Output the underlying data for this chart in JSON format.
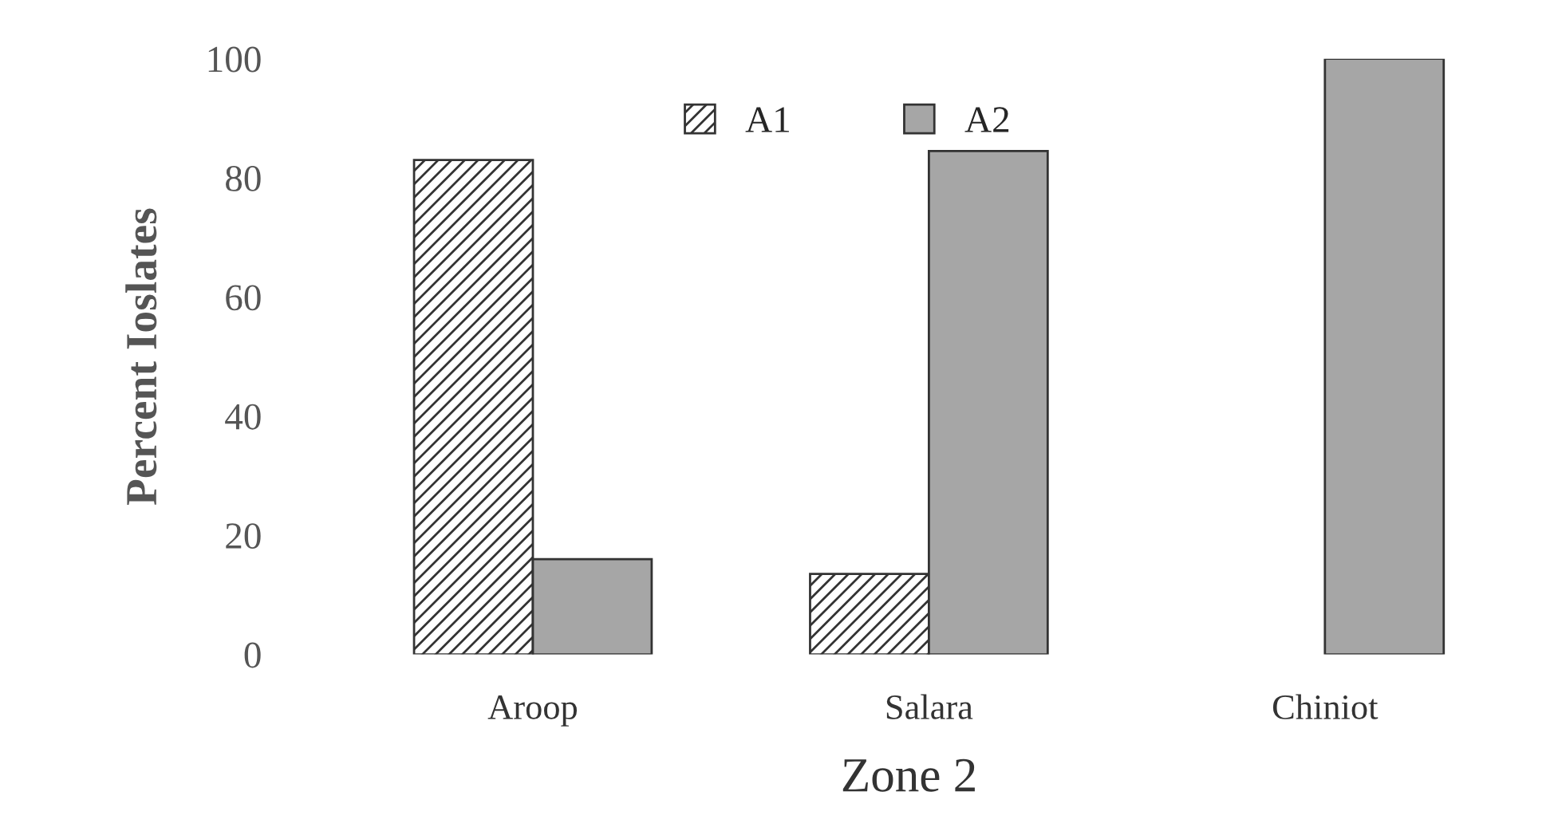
{
  "chart_data": {
    "type": "bar",
    "xlabel": "Zone 2",
    "ylabel": "Percent Ioslates",
    "categories": [
      "Aroop",
      "Salara",
      "Chiniot"
    ],
    "series": [
      {
        "name": "A1",
        "color": "#333333",
        "values": [
          83,
          13.5,
          null
        ]
      },
      {
        "name": "A2",
        "color": "#a6a6a6",
        "values": [
          16,
          84.5,
          100
        ]
      }
    ],
    "ylim": [
      0,
      100
    ],
    "yticks": [
      0,
      20,
      40,
      60,
      80,
      100
    ],
    "grid": false,
    "legend": "top"
  }
}
